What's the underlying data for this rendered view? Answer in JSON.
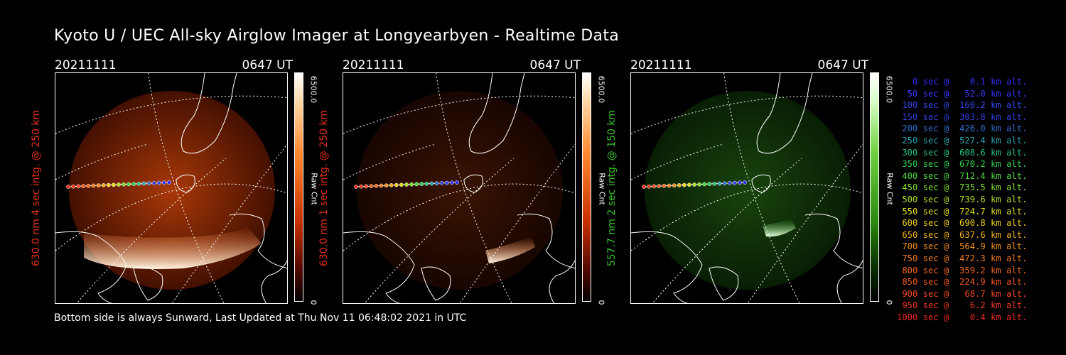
{
  "title": "Kyoto U / UEC All-sky Airglow Imager at Longyearbyen - Realtime Data",
  "footer": "Bottom side is always Sunward, Last Updated at Thu Nov 11 06:48:02 2021 in UTC",
  "panels": [
    {
      "date": "20211111",
      "time": "0647 UT",
      "ylabel": "630.0 nm  4 sec intg. @ 250 km",
      "ylabel_color": "#e03018",
      "cbar_max": "6500.0",
      "cbar_min": "0",
      "cbar_unit": "Raw Cnt",
      "theme": "red",
      "brightness": 1.0
    },
    {
      "date": "20211111",
      "time": "0647 UT",
      "ylabel": "630.0 nm  1 sec intg. @ 250 km",
      "ylabel_color": "#e03018",
      "cbar_max": "6500.0",
      "cbar_min": "0",
      "cbar_unit": "Raw Cnt",
      "theme": "red",
      "brightness": 0.35
    },
    {
      "date": "20211111",
      "time": "0647 UT",
      "ylabel": "557.7 nm  2 sec intg. @ 150 km",
      "ylabel_color": "#38c028",
      "cbar_max": "6500.0",
      "cbar_min": "0",
      "cbar_unit": "Raw Cnt",
      "theme": "green",
      "brightness": 0.55
    }
  ],
  "legend": [
    {
      "text": "   0 sec @    0.1 km alt.",
      "color": "#3030ff"
    },
    {
      "text": "  50 sec @   52.0 km alt.",
      "color": "#3838ff"
    },
    {
      "text": " 100 sec @  160.2 km alt.",
      "color": "#3048e8"
    },
    {
      "text": " 150 sec @  303.8 km alt.",
      "color": "#3040e0"
    },
    {
      "text": " 200 sec @  426.0 km alt.",
      "color": "#2f6cd0"
    },
    {
      "text": " 250 sec @  527.4 km alt.",
      "color": "#2aa0b0"
    },
    {
      "text": " 300 sec @  608.6 km alt.",
      "color": "#28c080"
    },
    {
      "text": " 350 sec @  670.2 km alt.",
      "color": "#30d050"
    },
    {
      "text": " 400 sec @  712.4 km alt.",
      "color": "#50d840"
    },
    {
      "text": " 450 sec @  735.5 km alt.",
      "color": "#80e030"
    },
    {
      "text": " 500 sec @  739.6 km alt.",
      "color": "#b0e028"
    },
    {
      "text": " 550 sec @  724.7 km alt.",
      "color": "#e0e020"
    },
    {
      "text": " 600 sec @  690.8 km alt.",
      "color": "#f0d020"
    },
    {
      "text": " 650 sec @  637.6 km alt.",
      "color": "#f0b020"
    },
    {
      "text": " 700 sec @  564.9 km alt.",
      "color": "#f09020"
    },
    {
      "text": " 750 sec @  472.3 km alt.",
      "color": "#f07a20"
    },
    {
      "text": " 800 sec @  359.2 km alt.",
      "color": "#f06820"
    },
    {
      "text": " 850 sec @  224.9 km alt.",
      "color": "#f05820"
    },
    {
      "text": " 900 sec @   68.7 km alt.",
      "color": "#f04a20"
    },
    {
      "text": " 950 sec @    6.2 km alt.",
      "color": "#f03a20"
    },
    {
      "text": "1000 sec @    0.4 km alt.",
      "color": "#f02a20"
    }
  ]
}
